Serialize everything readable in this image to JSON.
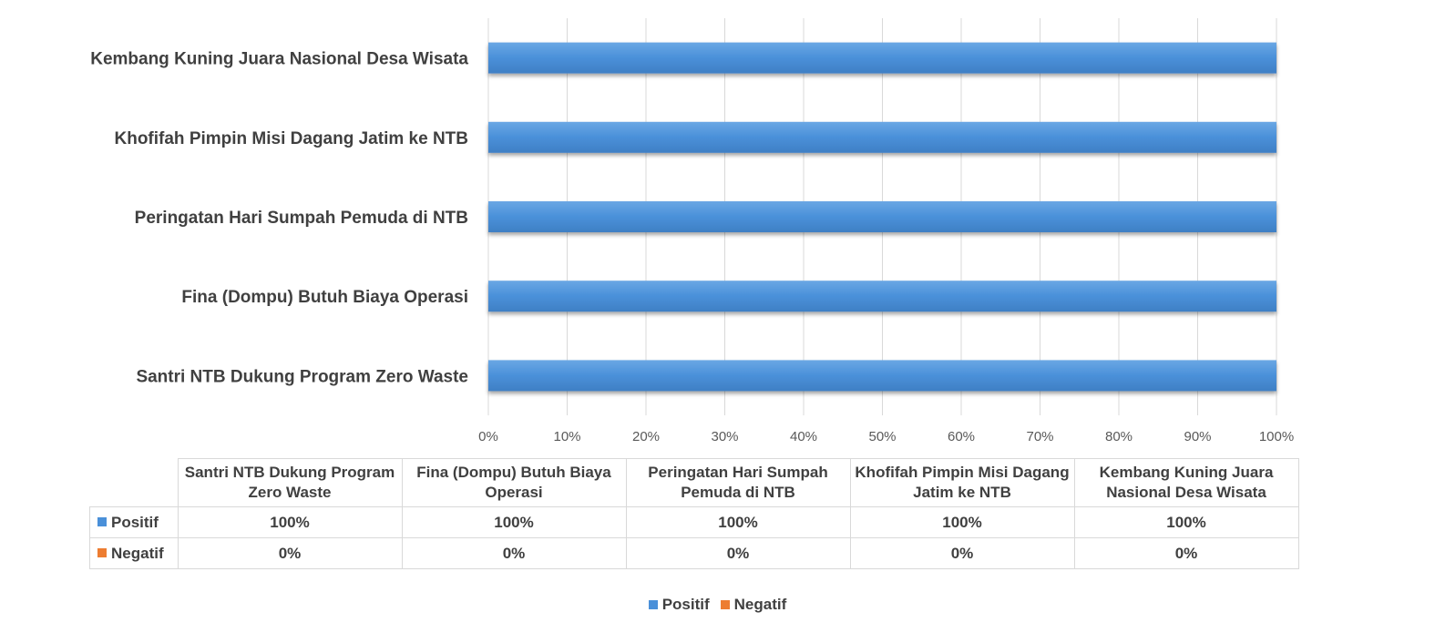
{
  "chart_data": {
    "type": "bar",
    "orientation": "horizontal",
    "stacked": true,
    "percent": true,
    "categories": [
      "Santri NTB Dukung Program Zero Waste",
      "Fina (Dompu) Butuh Biaya Operasi",
      "Peringatan Hari Sumpah Pemuda di NTB",
      "Khofifah Pimpin Misi Dagang Jatim ke NTB",
      "Kembang Kuning Juara Nasional Desa Wisata"
    ],
    "series": [
      {
        "name": "Positif",
        "color": "#4a90d9",
        "values": [
          100,
          100,
          100,
          100,
          100
        ],
        "labels": [
          "100%",
          "100%",
          "100%",
          "100%",
          "100%"
        ]
      },
      {
        "name": "Negatif",
        "color": "#ed7d31",
        "values": [
          0,
          0,
          0,
          0,
          0
        ],
        "labels": [
          "0%",
          "0%",
          "0%",
          "0%",
          "0%"
        ]
      }
    ],
    "xlim": [
      0,
      100
    ],
    "x_ticks": [
      "0%",
      "10%",
      "20%",
      "30%",
      "40%",
      "50%",
      "60%",
      "70%",
      "80%",
      "90%",
      "100%"
    ],
    "grid": true,
    "legend_position": "bottom",
    "data_table": {
      "headers": [
        "Santri NTB Dukung Program Zero Waste",
        "Fina (Dompu) Butuh Biaya Operasi",
        "Peringatan Hari Sumpah Pemuda di NTB",
        "Khofifah Pimpin Misi Dagang Jatim ke NTB",
        "Kembang Kuning Juara Nasional Desa Wisata"
      ]
    }
  }
}
